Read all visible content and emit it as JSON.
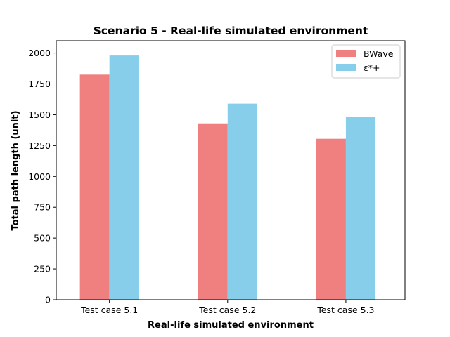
{
  "chart_data": {
    "type": "bar",
    "title": "Scenario 5 - Real-life simulated environment",
    "xlabel": "Real-life simulated environment",
    "ylabel": "Total path length (unit)",
    "categories": [
      "Test case 5.1",
      "Test case 5.2",
      "Test case 5.3"
    ],
    "series": [
      {
        "name": "BWave",
        "color": "#f08080",
        "values": [
          1825,
          1430,
          1305
        ]
      },
      {
        "name": "ε*+",
        "color": "#87ceeb",
        "values": [
          1980,
          1590,
          1480
        ]
      }
    ],
    "ylim": [
      0,
      2100
    ],
    "yticks": [
      0,
      250,
      500,
      750,
      1000,
      1250,
      1500,
      1750,
      2000
    ],
    "grid": false,
    "legend": "top-right"
  }
}
